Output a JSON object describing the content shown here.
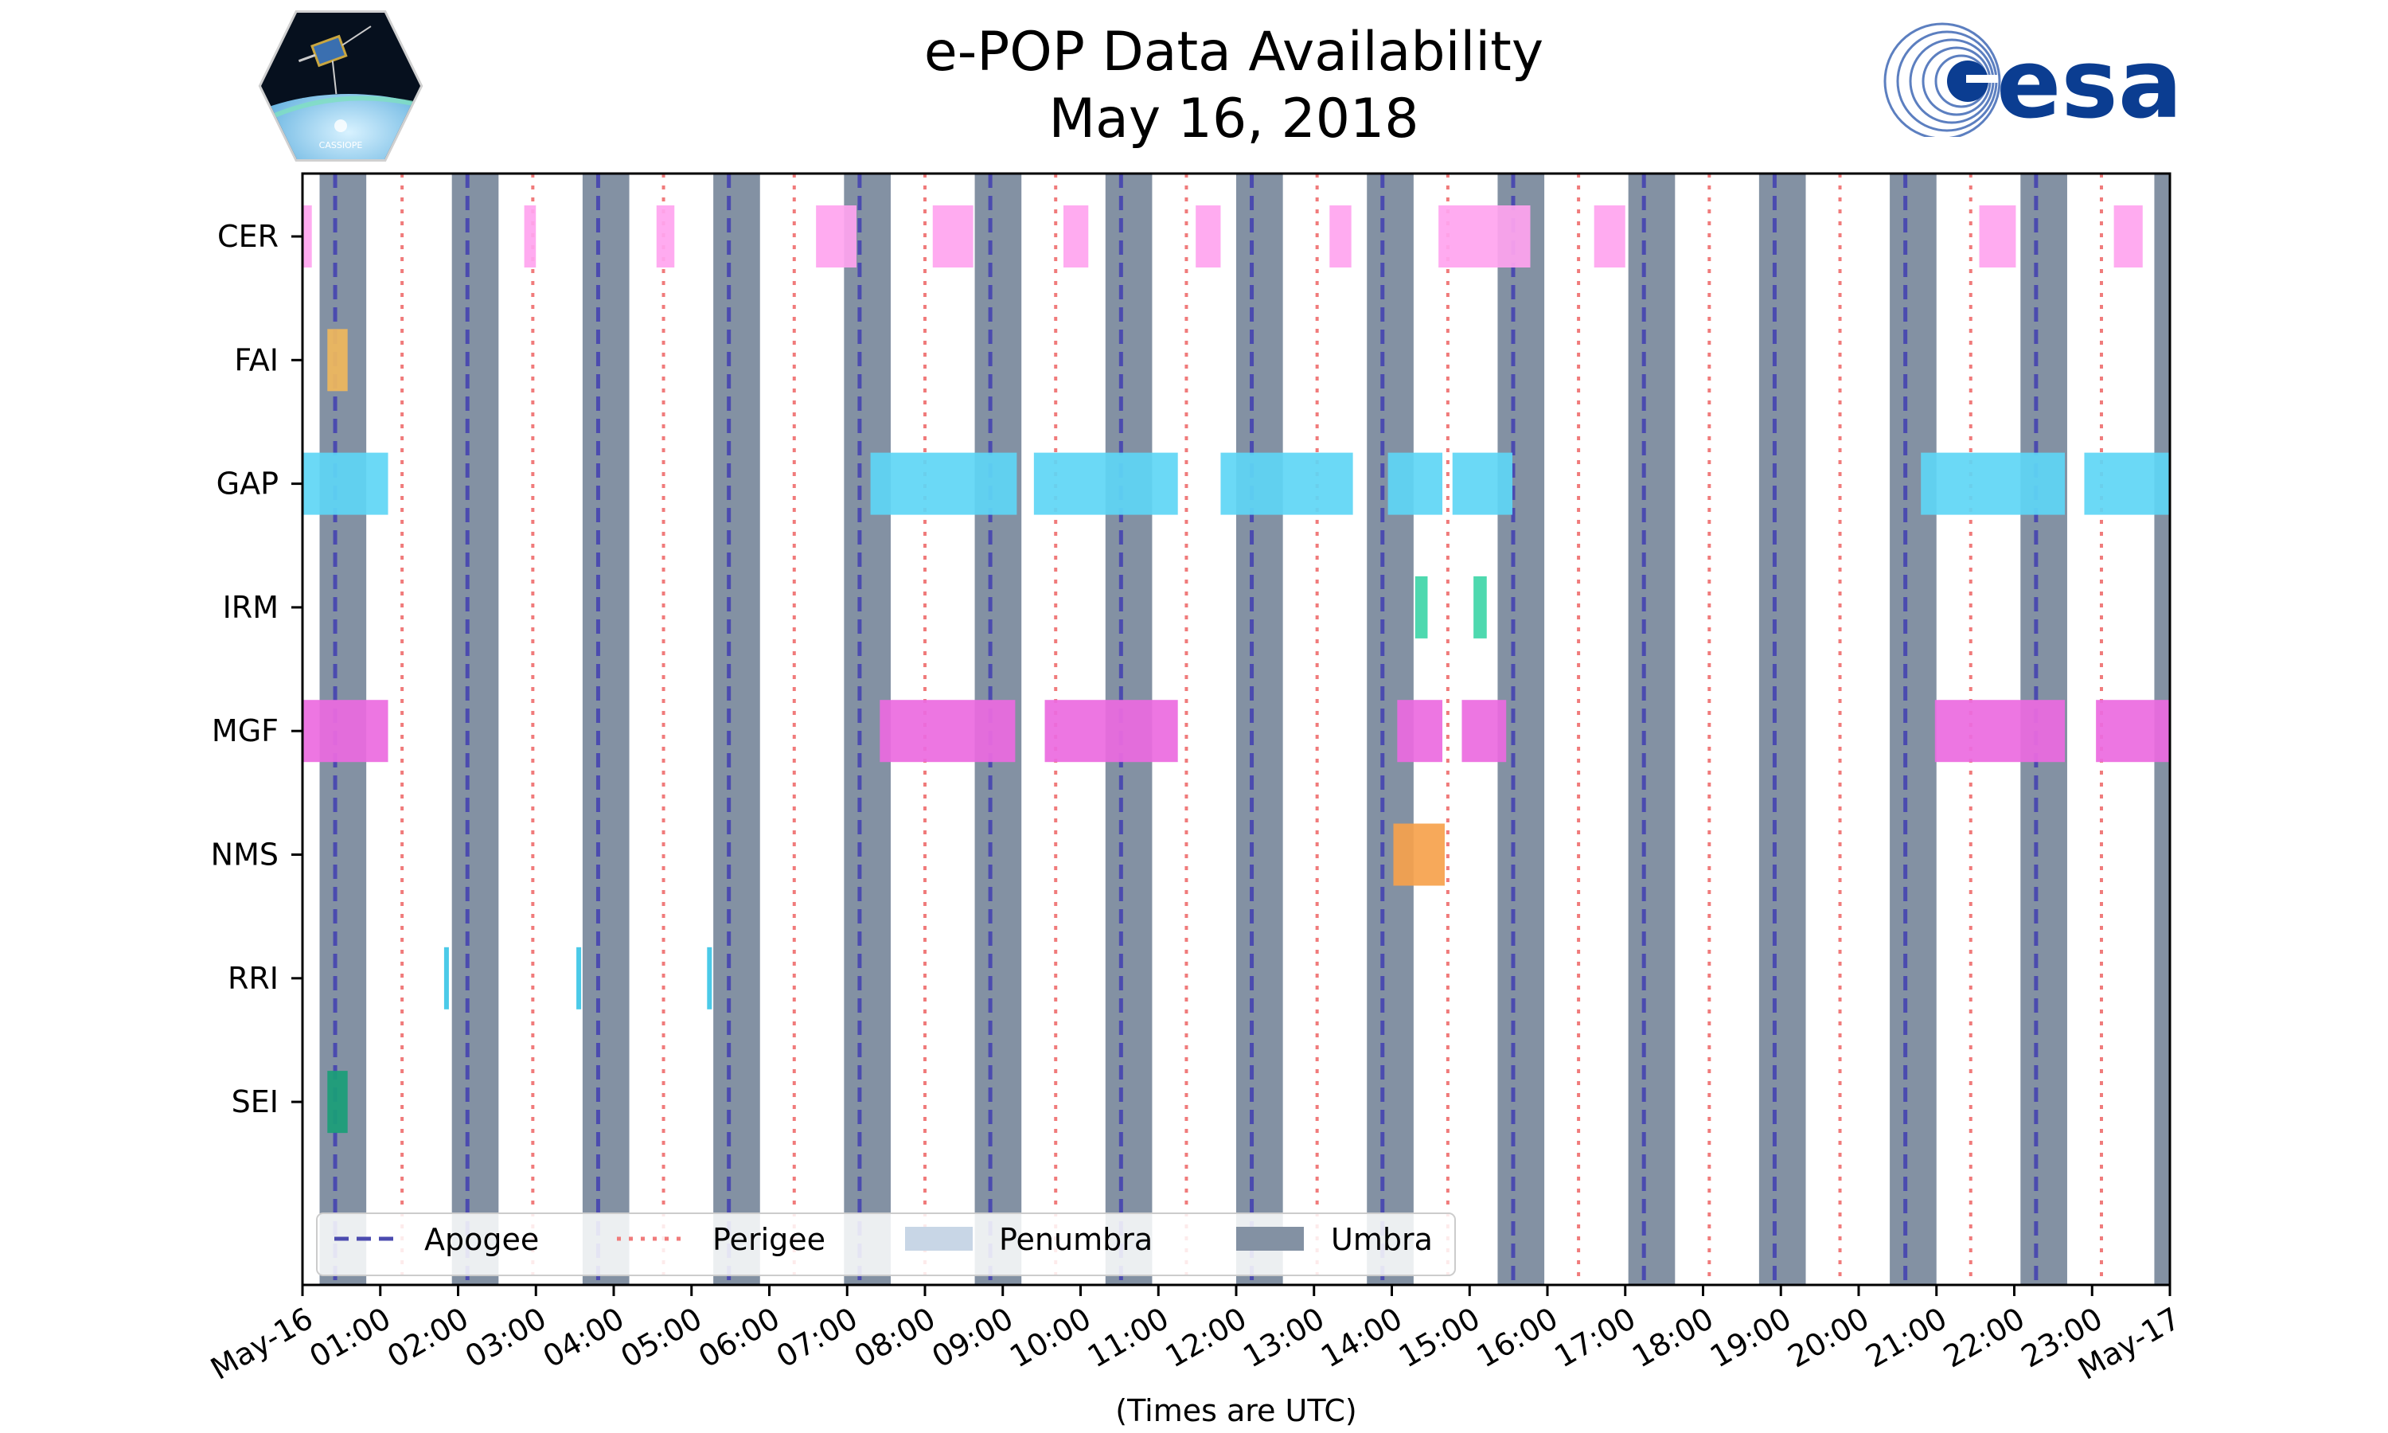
{
  "chart_data": {
    "type": "timeline",
    "title": "e-POP Data Availability",
    "subtitle": "May 16, 2018",
    "xlabel": "(Times are UTC)",
    "x_range_hours": [
      0,
      24
    ],
    "x_tick_labels": [
      "May-16",
      "01:00",
      "02:00",
      "03:00",
      "04:00",
      "05:00",
      "06:00",
      "07:00",
      "08:00",
      "09:00",
      "10:00",
      "11:00",
      "12:00",
      "13:00",
      "14:00",
      "15:00",
      "16:00",
      "17:00",
      "18:00",
      "19:00",
      "20:00",
      "21:00",
      "22:00",
      "23:00",
      "May-17"
    ],
    "instruments": [
      "CER",
      "FAI",
      "GAP",
      "IRM",
      "MGF",
      "NMS",
      "RRI",
      "SEI"
    ],
    "colors": {
      "CER": "#ffa4ef",
      "FAI": "#f0b95c",
      "GAP": "#5ed6f5",
      "IRM": "#3fd6a8",
      "MGF": "#ec6ae0",
      "NMS": "#f6a24c",
      "RRI": "#3cc6e6",
      "SEI": "#1a9e77",
      "apogee": "#4b4baf",
      "perigee": "#f07b7b",
      "penumbra": "#c8d6e6",
      "umbra": "#8391a3"
    },
    "umbra_intervals": [
      [
        0.22,
        0.82
      ],
      [
        1.92,
        2.52
      ],
      [
        3.6,
        4.2
      ],
      [
        5.28,
        5.88
      ],
      [
        6.96,
        7.56
      ],
      [
        8.64,
        9.24
      ],
      [
        10.32,
        10.92
      ],
      [
        12.0,
        12.6
      ],
      [
        13.68,
        14.28
      ],
      [
        15.36,
        15.96
      ],
      [
        17.04,
        17.64
      ],
      [
        18.72,
        19.32
      ],
      [
        20.4,
        21.0
      ],
      [
        22.08,
        22.68
      ],
      [
        23.8,
        24.0
      ]
    ],
    "apogee_times": [
      0.42,
      2.12,
      3.8,
      5.48,
      7.16,
      8.84,
      10.52,
      12.2,
      13.88,
      15.56,
      17.24,
      18.92,
      20.6,
      22.28
    ],
    "perigee_times": [
      1.28,
      2.96,
      4.64,
      6.32,
      8.0,
      9.68,
      11.36,
      13.04,
      14.72,
      16.4,
      18.08,
      19.76,
      21.44,
      23.12
    ],
    "availability": {
      "CER": [
        [
          0.0,
          0.12
        ],
        [
          2.85,
          3.0
        ],
        [
          4.55,
          4.78
        ],
        [
          6.6,
          7.12
        ],
        [
          8.1,
          8.62
        ],
        [
          9.78,
          10.1
        ],
        [
          11.48,
          11.8
        ],
        [
          13.2,
          13.48
        ],
        [
          14.6,
          15.78
        ],
        [
          16.6,
          17.0
        ],
        [
          21.55,
          22.02
        ],
        [
          23.28,
          23.65
        ]
      ],
      "FAI": [
        [
          0.32,
          0.58
        ]
      ],
      "GAP": [
        [
          0.0,
          1.1
        ],
        [
          7.3,
          9.18
        ],
        [
          9.4,
          11.25
        ],
        [
          11.8,
          13.5
        ],
        [
          13.95,
          14.65
        ],
        [
          14.78,
          15.55
        ],
        [
          20.8,
          22.65
        ],
        [
          22.9,
          24.0
        ]
      ],
      "IRM": [
        [
          14.3,
          14.46
        ],
        [
          15.05,
          15.22
        ]
      ],
      "MGF": [
        [
          0.0,
          1.1
        ],
        [
          7.42,
          9.16
        ],
        [
          9.54,
          11.25
        ],
        [
          14.07,
          14.65
        ],
        [
          14.9,
          15.47
        ],
        [
          20.98,
          22.65
        ],
        [
          23.05,
          24.0
        ]
      ],
      "NMS": [
        [
          14.02,
          14.68
        ]
      ],
      "RRI": [
        [
          1.82,
          1.86
        ],
        [
          3.52,
          3.56
        ],
        [
          5.2,
          5.24
        ]
      ],
      "SEI": [
        [
          0.32,
          0.58
        ]
      ]
    },
    "legend": [
      "Apogee",
      "Perigee",
      "Penumbra",
      "Umbra"
    ],
    "legend_placement": "bottom-left"
  },
  "logos": {
    "left_text": "CASSIOPE",
    "right_text": "esa"
  }
}
